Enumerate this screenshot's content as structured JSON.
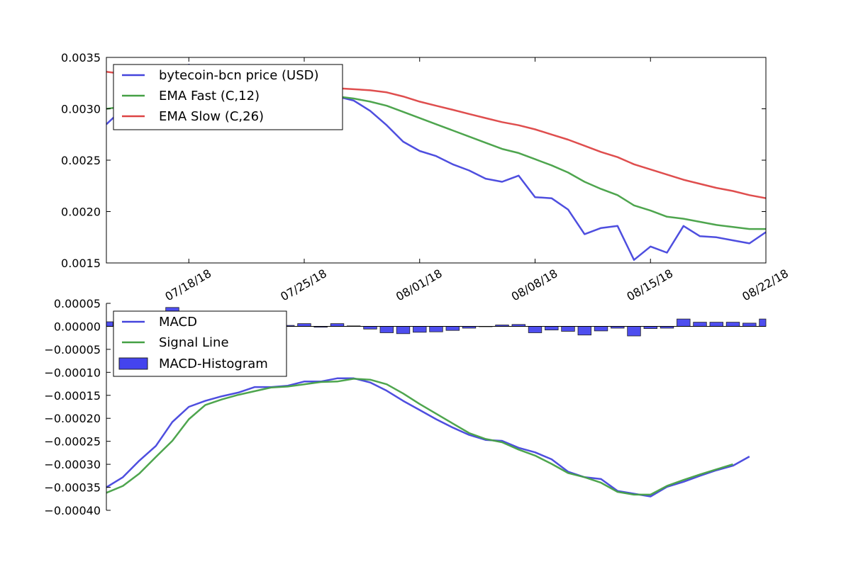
{
  "chart_data": [
    {
      "type": "line",
      "title": "",
      "xlabel": "",
      "ylabel": "",
      "ylim": [
        0.0015,
        0.0035
      ],
      "yticks": [
        "0.0015",
        "0.0020",
        "0.0025",
        "0.0030",
        "0.0035"
      ],
      "x_range": [
        "07/13/18",
        "08/22/18"
      ],
      "xticks": [
        "07/18/18",
        "07/25/18",
        "08/01/18",
        "08/08/18",
        "08/15/18",
        "08/22/18"
      ],
      "grid": false,
      "legend": "top-left",
      "x": [
        "07/13/18",
        "07/14/18",
        "07/15/18",
        "07/16/18",
        "07/17/18",
        "07/18/18",
        "07/19/18",
        "07/20/18",
        "07/21/18",
        "07/22/18",
        "07/23/18",
        "07/24/18",
        "07/25/18",
        "07/26/18",
        "07/27/18",
        "07/28/18",
        "07/29/18",
        "07/30/18",
        "07/31/18",
        "08/01/18",
        "08/02/18",
        "08/03/18",
        "08/04/18",
        "08/05/18",
        "08/06/18",
        "08/07/18",
        "08/08/18",
        "08/09/18",
        "08/10/18",
        "08/11/18",
        "08/12/18",
        "08/13/18",
        "08/14/18",
        "08/15/18",
        "08/16/18",
        "08/17/18",
        "08/18/18",
        "08/19/18",
        "08/20/18",
        "08/21/18",
        "08/22/18"
      ],
      "series": [
        {
          "name": "bytecoin-bcn price (USD)",
          "color": "#4444dd",
          "values": [
            0.00285,
            0.003,
            0.00315,
            0.00325,
            0.00333,
            0.00343,
            0.00336,
            0.0033,
            0.00326,
            0.00322,
            0.0032,
            0.00318,
            0.00316,
            0.00315,
            0.00312,
            0.00308,
            0.00298,
            0.00284,
            0.00268,
            0.00259,
            0.00254,
            0.00246,
            0.0024,
            0.00232,
            0.00229,
            0.00235,
            0.00214,
            0.00213,
            0.00202,
            0.00178,
            0.00184,
            0.00186,
            0.00153,
            0.00166,
            0.0016,
            0.00186,
            0.00176,
            0.00175,
            0.00172,
            0.00169,
            0.0018
          ]
        },
        {
          "name": "EMA Fast (C,12)",
          "color": "#44a044",
          "values": [
            0.003,
            0.00302,
            0.00305,
            0.00308,
            0.00311,
            0.00314,
            0.00316,
            0.00317,
            0.00317,
            0.00317,
            0.00316,
            0.00315,
            0.00314,
            0.00313,
            0.00312,
            0.0031,
            0.00307,
            0.00303,
            0.00297,
            0.00291,
            0.00285,
            0.00279,
            0.00273,
            0.00267,
            0.00261,
            0.00257,
            0.00251,
            0.00245,
            0.00238,
            0.00229,
            0.00222,
            0.00216,
            0.00206,
            0.00201,
            0.00195,
            0.00193,
            0.0019,
            0.00187,
            0.00185,
            0.00183,
            0.00183
          ]
        },
        {
          "name": "EMA Slow (C,26)",
          "color": "#dd4444",
          "values": [
            0.00336,
            0.00334,
            0.00332,
            0.0033,
            0.00329,
            0.00329,
            0.00328,
            0.00327,
            0.00326,
            0.00325,
            0.00324,
            0.00323,
            0.00322,
            0.00321,
            0.0032,
            0.00319,
            0.00318,
            0.00316,
            0.00312,
            0.00307,
            0.00303,
            0.00299,
            0.00295,
            0.00291,
            0.00287,
            0.00284,
            0.0028,
            0.00275,
            0.0027,
            0.00264,
            0.00258,
            0.00253,
            0.00246,
            0.00241,
            0.00236,
            0.00231,
            0.00227,
            0.00223,
            0.0022,
            0.00216,
            0.00213
          ]
        }
      ]
    },
    {
      "type": "line",
      "title": "",
      "xlabel": "",
      "ylabel": "",
      "ylim": [
        -0.0004,
        5e-05
      ],
      "yticks": [
        "−0.00040",
        "−0.00035",
        "−0.00030",
        "−0.00025",
        "−0.00020",
        "−0.00015",
        "−0.00010",
        "−0.00005",
        "0.00000",
        "0.00005"
      ],
      "x_range": [
        "07/13/18",
        "08/22/18"
      ],
      "grid": false,
      "legend": "top-left",
      "x": [
        "07/13/18",
        "07/14/18",
        "07/15/18",
        "07/16/18",
        "07/17/18",
        "07/18/18",
        "07/19/18",
        "07/20/18",
        "07/21/18",
        "07/22/18",
        "07/23/18",
        "07/24/18",
        "07/25/18",
        "07/26/18",
        "07/27/18",
        "07/28/18",
        "07/29/18",
        "07/30/18",
        "07/31/18",
        "08/01/18",
        "08/02/18",
        "08/03/18",
        "08/04/18",
        "08/05/18",
        "08/06/18",
        "08/07/18",
        "08/08/18",
        "08/09/18",
        "08/10/18",
        "08/11/18",
        "08/12/18",
        "08/13/18",
        "08/14/18",
        "08/15/18",
        "08/16/18",
        "08/17/18",
        "08/18/18",
        "08/19/18",
        "08/20/18",
        "08/21/18",
        "08/22/18"
      ],
      "series": [
        {
          "name": "MACD",
          "kind": "line",
          "color": "#4444dd",
          "values": [
            -0.00035,
            -0.000328,
            -0.000292,
            -0.00026,
            -0.000208,
            -0.000175,
            -0.000162,
            -0.000152,
            -0.000144,
            -0.000132,
            -0.000132,
            -0.000129,
            -0.00012,
            -0.00012,
            -0.000113,
            -0.000113,
            -0.000122,
            -0.00014,
            -0.000162,
            -0.000182,
            -0.000202,
            -0.00022,
            -0.000236,
            -0.000247,
            -0.000249,
            -0.000264,
            -0.000274,
            -0.000289,
            -0.000316,
            -0.000328,
            -0.000332,
            -0.000358,
            -0.000364,
            -0.00037,
            -0.000349,
            -0.000338,
            -0.000325,
            -0.000313,
            -0.000303,
            -0.000283,
            null
          ]
        },
        {
          "name": "Signal Line",
          "kind": "line",
          "color": "#44a044",
          "values": [
            -0.000362,
            -0.000347,
            -0.00032,
            -0.000284,
            -0.000249,
            -0.000202,
            -0.000171,
            -0.000159,
            -0.000149,
            -0.000141,
            -0.000133,
            -0.000131,
            -0.000126,
            -0.000121,
            -0.00012,
            -0.000114,
            -0.000116,
            -0.000126,
            -0.000146,
            -0.000169,
            -0.00019,
            -0.000211,
            -0.000232,
            -0.000245,
            -0.000252,
            -0.000268,
            -0.000281,
            -0.000299,
            -0.000319,
            -0.000328,
            -0.00034,
            -0.00036,
            -0.000366,
            -0.000366,
            -0.000347,
            -0.000334,
            -0.000322,
            -0.000311,
            -0.0003,
            null,
            null
          ]
        },
        {
          "name": "MACD-Histogram",
          "kind": "bar",
          "color": "#4444ee",
          "values": [
            1e-05,
            1.8e-05,
            2.8e-05,
            2.4e-05,
            4.1e-05,
            2.7e-05,
            9e-06,
            7e-06,
            5e-06,
            9e-06,
            1e-06,
            2e-06,
            6e-06,
            -2e-06,
            6e-06,
            1e-06,
            -6e-06,
            -1.4e-05,
            -1.6e-05,
            -1.3e-05,
            -1.2e-05,
            -9e-06,
            -4e-06,
            -1e-06,
            3e-06,
            4e-06,
            -1.4e-05,
            -8e-06,
            -1.1e-05,
            -1.9e-05,
            -1e-05,
            -4e-06,
            -2.1e-05,
            -5e-06,
            -4e-06,
            1.6e-05,
            9e-06,
            9e-06,
            9e-06,
            7e-06,
            1.6e-05
          ]
        }
      ]
    }
  ]
}
